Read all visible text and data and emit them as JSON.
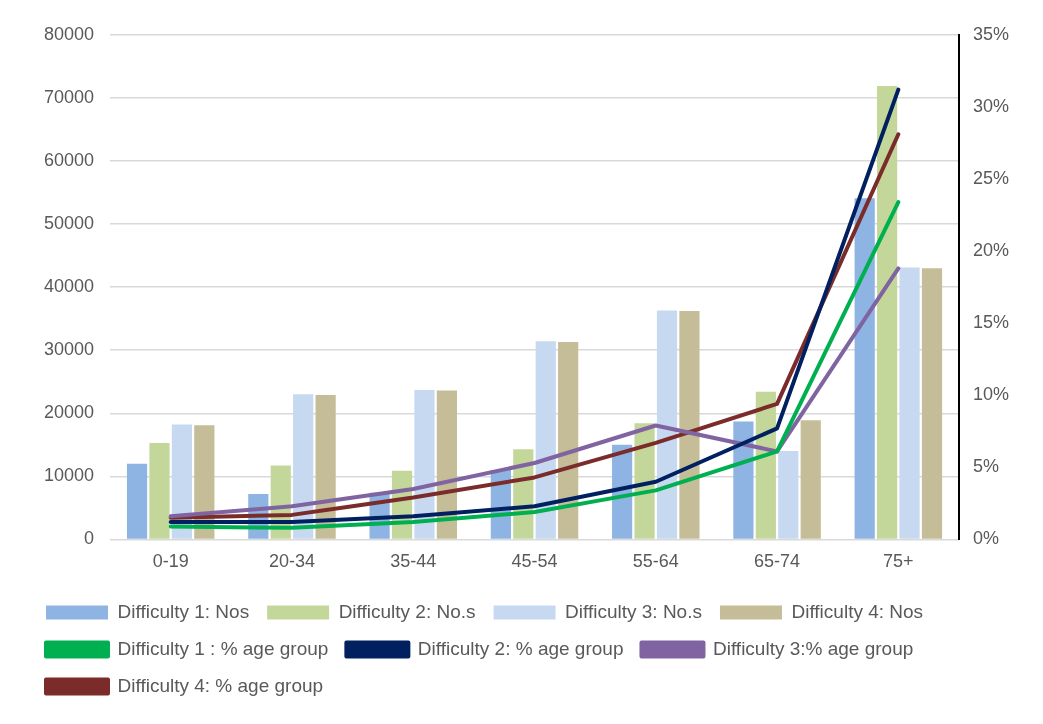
{
  "chart_data": {
    "type": "bar",
    "categories": [
      "0-19",
      "20-34",
      "35-44",
      "45-54",
      "55-64",
      "65-74",
      "75+"
    ],
    "series": [
      {
        "name": "Difficulty 1: Nos",
        "color": "#8eb4e3",
        "values": [
          12000,
          7200,
          7400,
          11000,
          15000,
          18700,
          54100
        ]
      },
      {
        "name": "Difficulty 2: No.s",
        "color": "#c4d79b",
        "values": [
          15300,
          11700,
          10900,
          14300,
          18400,
          23400,
          71900
        ]
      },
      {
        "name": "Difficulty 3: No.s",
        "color": "#c6d9f1",
        "values": [
          18200,
          23000,
          23700,
          31400,
          36300,
          14000,
          43100
        ]
      },
      {
        "name": "Difficulty 4: Nos",
        "color": "#c4bd97",
        "values": [
          18100,
          22900,
          23600,
          31300,
          36200,
          18900,
          43000
        ]
      },
      {
        "name": "Difficulty 1 : % age group",
        "type": "line",
        "axis": "y2",
        "color": "#00b050",
        "values": [
          0.9,
          0.8,
          1.2,
          1.9,
          3.4,
          6.1,
          23.4
        ]
      },
      {
        "name": "Difficulty 2: % age group",
        "type": "line",
        "axis": "y2",
        "color": "#002060",
        "values": [
          1.2,
          1.2,
          1.6,
          2.3,
          4.0,
          7.7,
          31.2
        ]
      },
      {
        "name": "Difficulty 3:% age group",
        "type": "line",
        "axis": "y2",
        "color": "#8064a2",
        "values": [
          1.6,
          2.3,
          3.5,
          5.3,
          7.9,
          6.1,
          18.8
        ]
      },
      {
        "name": "Difficulty 4: % age group",
        "type": "line",
        "axis": "y2",
        "color": "#7b2c2a",
        "values": [
          1.5,
          1.7,
          2.9,
          4.3,
          6.7,
          9.4,
          28.1
        ]
      }
    ],
    "ylim": [
      0,
      80000
    ],
    "yticks": [
      0,
      10000,
      20000,
      30000,
      40000,
      50000,
      60000,
      70000,
      80000
    ],
    "y2lim": [
      0,
      35
    ],
    "y2ticks": [
      {
        "value": 0,
        "label": "0%"
      },
      {
        "value": 5,
        "label": "5%"
      },
      {
        "value": 10,
        "label": "10%"
      },
      {
        "value": 15,
        "label": "15%"
      },
      {
        "value": 20,
        "label": "20%"
      },
      {
        "value": 25,
        "label": "25%"
      },
      {
        "value": 30,
        "label": "30%"
      },
      {
        "value": 35,
        "label": "35%"
      }
    ],
    "grid": "y",
    "legend": "bottom",
    "marker": "none",
    "line_style": "solid"
  }
}
